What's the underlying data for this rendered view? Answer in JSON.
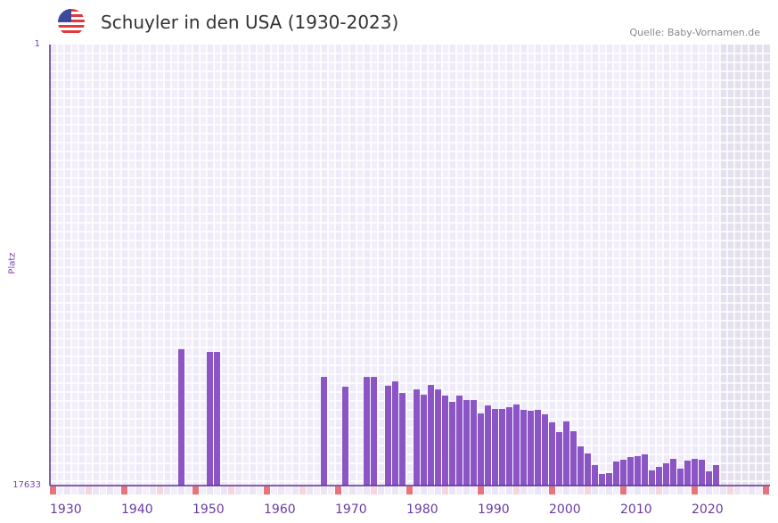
{
  "header": {
    "title": "Schuyler in den USA (1930-2023)",
    "source": "Quelle: Baby-Vornamen.de",
    "flag_icon": "us-flag-icon"
  },
  "colors": {
    "bar": "#8b55c6",
    "decade_marker": "#e8737b",
    "half_decade_marker": "#f5d6dd",
    "plot_bg": "#efeaf8",
    "future_bg": "#e4e0ee"
  },
  "chart_data": {
    "type": "bar",
    "title": "Schuyler in den USA (1930-2023)",
    "xlabel": "",
    "ylabel": "Platz",
    "y_axis_inverted": true,
    "ylim": [
      1,
      17633
    ],
    "ytick_labels": [
      "1",
      "17633"
    ],
    "xlim": [
      1930,
      2030
    ],
    "xtick_labels": [
      "1930",
      "1940",
      "1950",
      "1960",
      "1970",
      "1980",
      "1990",
      "2000",
      "2010",
      "2020"
    ],
    "years": [
      1948,
      1952,
      1953,
      1968,
      1971,
      1974,
      1975,
      1977,
      1978,
      1979,
      1981,
      1982,
      1983,
      1984,
      1985,
      1986,
      1987,
      1988,
      1989,
      1990,
      1991,
      1992,
      1993,
      1994,
      1995,
      1996,
      1997,
      1998,
      1999,
      2000,
      2001,
      2002,
      2003,
      2004,
      2005,
      2006,
      2007,
      2008,
      2009,
      2010,
      2011,
      2012,
      2013,
      2014,
      2015,
      2016,
      2017,
      2018,
      2019,
      2020,
      2021,
      2022,
      2023
    ],
    "ranks": [
      12180,
      12290,
      12290,
      13290,
      13680,
      13290,
      13290,
      13640,
      13470,
      13930,
      13790,
      14000,
      13610,
      13790,
      14035,
      14285,
      14035,
      14215,
      14215,
      14750,
      14430,
      14570,
      14570,
      14500,
      14390,
      14605,
      14640,
      14605,
      14785,
      15105,
      15495,
      15070,
      15460,
      16065,
      16350,
      16815,
      17170,
      17135,
      16670,
      16600,
      16495,
      16455,
      16385,
      17025,
      16885,
      16740,
      16565,
      16955,
      16635,
      16565,
      16600,
      17065,
      16815
    ],
    "grid": true
  }
}
